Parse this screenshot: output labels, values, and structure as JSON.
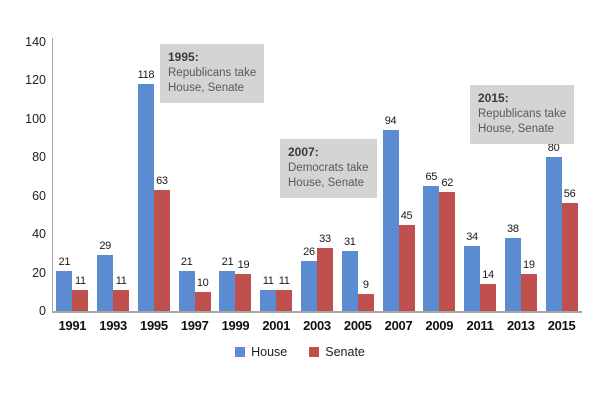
{
  "chart_data": {
    "type": "bar",
    "categories": [
      "1991",
      "1993",
      "1995",
      "1997",
      "1999",
      "2001",
      "2003",
      "2005",
      "2007",
      "2009",
      "2011",
      "2013",
      "2015"
    ],
    "series": [
      {
        "name": "House",
        "color": "#5b8bd0",
        "values": [
          21,
          29,
          118,
          21,
          21,
          11,
          26,
          31,
          94,
          65,
          34,
          38,
          80
        ]
      },
      {
        "name": "Senate",
        "color": "#c0504d",
        "values": [
          11,
          11,
          63,
          10,
          19,
          11,
          33,
          9,
          45,
          62,
          14,
          19,
          56
        ]
      }
    ],
    "title": "",
    "xlabel": "",
    "ylabel": "",
    "ylim": [
      0,
      140
    ],
    "yticks": [
      0,
      20,
      40,
      60,
      80,
      100,
      120,
      140
    ],
    "grid": false,
    "legend_position": "bottom",
    "bar_value_labels": true,
    "annotations": [
      {
        "year": "1995:",
        "lines": [
          "Republicans take",
          "House, Senate"
        ],
        "box_color": "#d4d4d4"
      },
      {
        "year": "2007:",
        "lines": [
          "Democrats take",
          "House, Senate"
        ],
        "box_color": "#d4d4d4"
      },
      {
        "year": "2015:",
        "lines": [
          "Republicans take",
          "House, Senate"
        ],
        "box_color": "#d4d4d4"
      }
    ],
    "axis_color": "#a6a6a6"
  }
}
